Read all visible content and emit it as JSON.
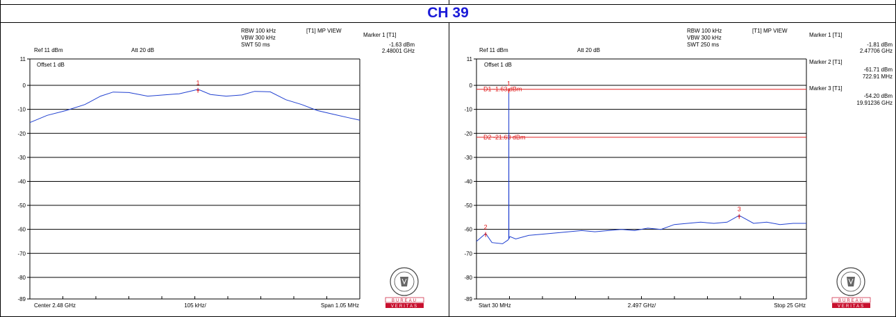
{
  "title": "CH 39",
  "colors": {
    "title": "#1a1ad8",
    "trace": "#1f3fd0",
    "marker": "#e01818",
    "display_line": "#e02020",
    "grid": "#000000",
    "logo_red": "#c8102e"
  },
  "logo": {
    "name": "bureau-veritas-logo",
    "line1": "BUREAU",
    "line2": "VERITAS",
    "seal_text": "BUREAU VERITAS",
    "year": "1828"
  },
  "panels": [
    {
      "settings": {
        "rbw": "RBW 100 kHz",
        "vbw": "VBW 300 kHz",
        "swt": "SWT 50 ms",
        "mode": "[T1] MP VIEW"
      },
      "ref": "Ref 11 dBm",
      "att": "Att  20 dB",
      "offset": "Offset 1 dB",
      "markers_info": [
        {
          "title": "Marker 1 [T1]",
          "level": "-1.63 dBm",
          "freq": "2.48001 GHz"
        }
      ],
      "bottom": {
        "left": "Center 2.48 GHz",
        "center": "105 kHz/",
        "right": "Span 1.05 MHz"
      }
    },
    {
      "settings": {
        "rbw": "RBW 100 kHz",
        "vbw": "VBW 300 kHz",
        "swt": "SWT 250 ms",
        "mode": "[T1] MP VIEW"
      },
      "ref": "Ref 11 dBm",
      "att": "Att  20 dB",
      "offset": "Offset 1 dB",
      "markers_info": [
        {
          "title": "Marker 1 [T1]",
          "level": "-1.81 dBm",
          "freq": "2.47706 GHz"
        },
        {
          "title": "Marker 2 [T1]",
          "level": "-61.71 dBm",
          "freq": "722.91 MHz"
        },
        {
          "title": "Marker 3 [T1]",
          "level": "-54.20 dBm",
          "freq": "19.91236 GHz"
        }
      ],
      "bottom": {
        "left": "Start 30 MHz",
        "center": "2.497 GHz/",
        "right": "Stop 25 GHz"
      }
    }
  ],
  "chart_data": [
    {
      "type": "line",
      "xlabel": "",
      "ylabel": "",
      "x_unit": "MHz",
      "xlim": [
        2479.475,
        2480.525
      ],
      "ylim": [
        -89,
        11
      ],
      "y_ticks": [
        11,
        0,
        -10,
        -20,
        -30,
        -40,
        -50,
        -60,
        -70,
        -80,
        -89
      ],
      "grid": true,
      "series": [
        {
          "x": [
            2479.475,
            2479.53,
            2479.59,
            2479.65,
            2479.7,
            2479.74,
            2479.79,
            2479.85,
            2479.9,
            2479.95,
            2480.0,
            2480.01,
            2480.05,
            2480.1,
            2480.15,
            2480.19,
            2480.24,
            2480.29,
            2480.34,
            2480.39,
            2480.44,
            2480.49,
            2480.525
          ],
          "values": [
            -15.5,
            -12.5,
            -10.5,
            -8.0,
            -4.5,
            -2.8,
            -3.0,
            -4.5,
            -4.0,
            -3.5,
            -2.0,
            -1.63,
            -3.8,
            -4.5,
            -4.0,
            -2.5,
            -2.7,
            -6.0,
            -8.0,
            -10.5,
            -12.0,
            -13.5,
            -14.5
          ]
        }
      ],
      "markers": [
        {
          "label": "1",
          "x": 2480.01,
          "y": -1.63
        }
      ],
      "display_lines": []
    },
    {
      "type": "line",
      "xlabel": "",
      "ylabel": "",
      "x_unit": "MHz",
      "xlim": [
        30,
        25000
      ],
      "ylim": [
        -89,
        11
      ],
      "y_ticks": [
        11,
        0,
        -10,
        -20,
        -30,
        -40,
        -50,
        -60,
        -70,
        -80,
        -89
      ],
      "grid": true,
      "series": [
        {
          "x": [
            30,
            722.91,
            1200,
            2000,
            2400,
            2470,
            2477.06,
            2485,
            2560,
            3000,
            4000,
            5000,
            6000,
            7000,
            8000,
            9000,
            10000,
            11000,
            12000,
            13000,
            14000,
            15000,
            16000,
            17000,
            18000,
            19000,
            19912.36,
            21000,
            22000,
            23000,
            24000,
            25000
          ],
          "values": [
            -65,
            -61.71,
            -65.5,
            -66,
            -64.5,
            -64,
            -1.81,
            -64,
            -63,
            -64,
            -62.5,
            -62,
            -61.5,
            -61,
            -60.5,
            -61,
            -60.5,
            -60,
            -60.5,
            -59.5,
            -60,
            -58,
            -57.5,
            -57,
            -57.5,
            -57,
            -54.2,
            -57.5,
            -57,
            -58,
            -57.5,
            -57.5
          ]
        }
      ],
      "markers": [
        {
          "label": "1",
          "x": 2477.06,
          "y": -1.81
        },
        {
          "label": "2",
          "x": 722.91,
          "y": -61.71
        },
        {
          "label": "3",
          "x": 19912.36,
          "y": -54.2
        }
      ],
      "display_lines": [
        {
          "name": "D1",
          "label": "D1 -1.63 dBm",
          "value": -1.63
        },
        {
          "name": "D2",
          "label": "D2 -21.63 dBm",
          "value": -21.63
        }
      ]
    }
  ]
}
